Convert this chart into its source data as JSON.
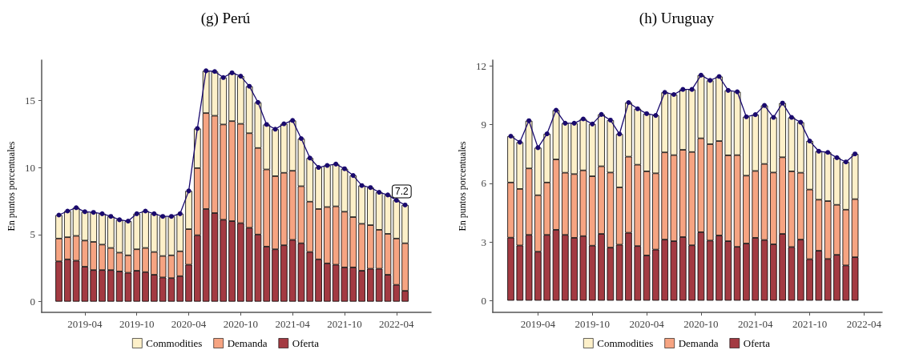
{
  "chart_data": [
    {
      "type": "bar",
      "title": "(g) Perú",
      "ylabel": "En puntos porcentuales",
      "stacked": true,
      "legend": "bottom",
      "grid": false,
      "marker": "circle",
      "x": [
        "2019-01",
        "2019-02",
        "2019-03",
        "2019-04",
        "2019-05",
        "2019-06",
        "2019-07",
        "2019-08",
        "2019-09",
        "2019-10",
        "2019-11",
        "2019-12",
        "2020-01",
        "2020-02",
        "2020-03",
        "2020-04",
        "2020-05",
        "2020-06",
        "2020-07",
        "2020-08",
        "2020-09",
        "2020-10",
        "2020-11",
        "2020-12",
        "2021-01",
        "2021-02",
        "2021-03",
        "2021-04",
        "2021-05",
        "2021-06",
        "2021-07",
        "2021-08",
        "2021-09",
        "2021-10",
        "2021-11",
        "2021-12",
        "2022-01",
        "2022-02",
        "2022-03",
        "2022-04",
        "2022-05"
      ],
      "xlim": [
        "2018-11",
        "2022-08"
      ],
      "xticks": [
        "2019-04",
        "2019-10",
        "2020-04",
        "2020-10",
        "2021-04",
        "2021-10",
        "2022-04"
      ],
      "ylim": [
        -0.8,
        18
      ],
      "yticks": [
        0,
        5,
        10,
        15
      ],
      "series": [
        {
          "name": "Oferta",
          "color": "#a33a42",
          "values": [
            3.0,
            3.15,
            3.05,
            2.6,
            2.35,
            2.35,
            2.35,
            2.25,
            2.15,
            2.3,
            2.2,
            2.0,
            1.8,
            1.75,
            1.9,
            2.75,
            4.95,
            6.9,
            6.6,
            6.1,
            6.0,
            5.85,
            5.5,
            5.0,
            4.1,
            3.9,
            4.2,
            4.6,
            4.35,
            3.7,
            3.15,
            2.85,
            2.75,
            2.55,
            2.55,
            2.3,
            2.45,
            2.45,
            2.0,
            1.25,
            0.8
          ]
        },
        {
          "name": "Demanda",
          "color": "#f6a482",
          "values": [
            1.7,
            1.65,
            1.85,
            1.95,
            2.1,
            1.9,
            1.65,
            1.4,
            1.3,
            1.6,
            1.8,
            1.7,
            1.6,
            1.7,
            1.85,
            2.65,
            5.0,
            7.15,
            7.25,
            7.1,
            7.45,
            7.4,
            7.05,
            6.45,
            5.75,
            5.45,
            5.4,
            5.15,
            4.25,
            3.75,
            3.75,
            4.2,
            4.35,
            4.15,
            3.75,
            3.5,
            3.25,
            2.9,
            3.05,
            3.45,
            3.55
          ]
        },
        {
          "name": "Commodities",
          "color": "#fdf0c9",
          "values": [
            1.75,
            1.95,
            2.1,
            2.15,
            2.2,
            2.3,
            2.35,
            2.45,
            2.55,
            2.65,
            2.75,
            2.85,
            2.95,
            2.9,
            2.8,
            2.85,
            2.95,
            3.15,
            3.3,
            3.5,
            3.6,
            3.55,
            3.5,
            3.4,
            3.35,
            3.5,
            3.65,
            3.75,
            3.55,
            3.25,
            3.1,
            3.1,
            3.15,
            3.2,
            3.1,
            2.85,
            2.8,
            2.8,
            2.9,
            2.85,
            2.85
          ]
        },
        {
          "type": "line",
          "color": "#1a0a6e",
          "values": [
            6.45,
            6.75,
            7.0,
            6.7,
            6.65,
            6.55,
            6.35,
            6.1,
            6.0,
            6.55,
            6.75,
            6.55,
            6.35,
            6.35,
            6.55,
            8.25,
            12.9,
            17.2,
            17.15,
            16.7,
            17.05,
            16.8,
            16.05,
            14.85,
            13.2,
            12.85,
            13.25,
            13.5,
            12.15,
            10.7,
            10.0,
            10.15,
            10.25,
            9.9,
            9.4,
            8.65,
            8.5,
            8.15,
            7.95,
            7.55,
            7.2
          ],
          "value_labels": [
            null,
            null,
            null,
            null,
            null,
            null,
            null,
            null,
            null,
            null,
            null,
            null,
            null,
            null,
            null,
            null,
            null,
            null,
            null,
            null,
            null,
            null,
            null,
            null,
            null,
            null,
            null,
            null,
            null,
            null,
            null,
            null,
            null,
            null,
            null,
            null,
            null,
            null,
            null,
            null,
            "7.2"
          ]
        }
      ]
    },
    {
      "type": "bar",
      "title": "(h) Uruguay",
      "ylabel": "En puntos porcentuales",
      "stacked": true,
      "legend": "bottom",
      "grid": false,
      "marker": "circle",
      "x": [
        "2019-01",
        "2019-02",
        "2019-03",
        "2019-04",
        "2019-05",
        "2019-06",
        "2019-07",
        "2019-08",
        "2019-09",
        "2019-10",
        "2019-11",
        "2019-12",
        "2020-01",
        "2020-02",
        "2020-03",
        "2020-04",
        "2020-05",
        "2020-06",
        "2020-07",
        "2020-08",
        "2020-09",
        "2020-10",
        "2020-11",
        "2020-12",
        "2021-01",
        "2021-02",
        "2021-03",
        "2021-04",
        "2021-05",
        "2021-06",
        "2021-07",
        "2021-08",
        "2021-09",
        "2021-10",
        "2021-11",
        "2021-12",
        "2022-01",
        "2022-02",
        "2022-03"
      ],
      "xlim": [
        "2018-11",
        "2022-06"
      ],
      "xticks": [
        "2019-04",
        "2019-10",
        "2020-04",
        "2020-10",
        "2021-04",
        "2021-10",
        "2022-04"
      ],
      "ylim": [
        -0.6,
        12.3
      ],
      "yticks": [
        0,
        3,
        6,
        9,
        12
      ],
      "series": [
        {
          "name": "Oferta",
          "color": "#a33a42",
          "values": [
            3.22,
            2.82,
            3.36,
            2.5,
            3.36,
            3.62,
            3.36,
            3.21,
            3.3,
            2.81,
            3.41,
            2.71,
            2.86,
            3.47,
            2.79,
            2.31,
            2.61,
            3.12,
            3.04,
            3.25,
            2.83,
            3.5,
            3.07,
            3.33,
            3.04,
            2.75,
            2.92,
            3.21,
            3.1,
            2.88,
            3.41,
            2.74,
            3.12,
            2.12,
            2.55,
            2.13,
            2.34,
            1.8,
            2.22
          ]
        },
        {
          "name": "Demanda",
          "color": "#f6a482",
          "values": [
            2.82,
            2.89,
            3.4,
            2.89,
            2.68,
            3.6,
            3.18,
            3.26,
            3.36,
            3.55,
            3.46,
            3.84,
            2.93,
            3.89,
            4.16,
            4.3,
            3.9,
            4.46,
            4.4,
            4.46,
            4.77,
            4.8,
            4.93,
            4.83,
            4.39,
            4.69,
            3.47,
            3.42,
            3.89,
            3.67,
            3.92,
            3.87,
            3.42,
            3.56,
            2.61,
            2.96,
            2.56,
            2.85,
            2.97
          ]
        },
        {
          "name": "Commodities",
          "color": "#fdf0c9",
          "values": [
            2.37,
            2.39,
            2.44,
            2.43,
            2.49,
            2.52,
            2.53,
            2.6,
            2.63,
            2.67,
            2.65,
            2.68,
            2.73,
            2.77,
            2.86,
            2.95,
            2.96,
            3.07,
            3.1,
            3.09,
            3.2,
            3.23,
            3.26,
            3.3,
            3.32,
            3.24,
            3.01,
            2.88,
            2.99,
            2.82,
            2.77,
            2.76,
            2.58,
            2.48,
            2.48,
            2.49,
            2.41,
            2.44,
            2.31
          ]
        },
        {
          "type": "line",
          "color": "#1a0a6e",
          "values": [
            8.41,
            8.1,
            9.2,
            7.82,
            8.53,
            9.74,
            9.07,
            9.07,
            9.29,
            9.03,
            9.52,
            9.23,
            8.52,
            10.13,
            9.81,
            9.56,
            9.47,
            10.65,
            10.54,
            10.8,
            10.8,
            11.53,
            11.26,
            11.46,
            10.75,
            10.68,
            9.4,
            9.51,
            9.98,
            9.37,
            10.1,
            9.37,
            9.12,
            8.16,
            7.64,
            7.58,
            7.31,
            7.09,
            7.5
          ]
        }
      ]
    }
  ]
}
